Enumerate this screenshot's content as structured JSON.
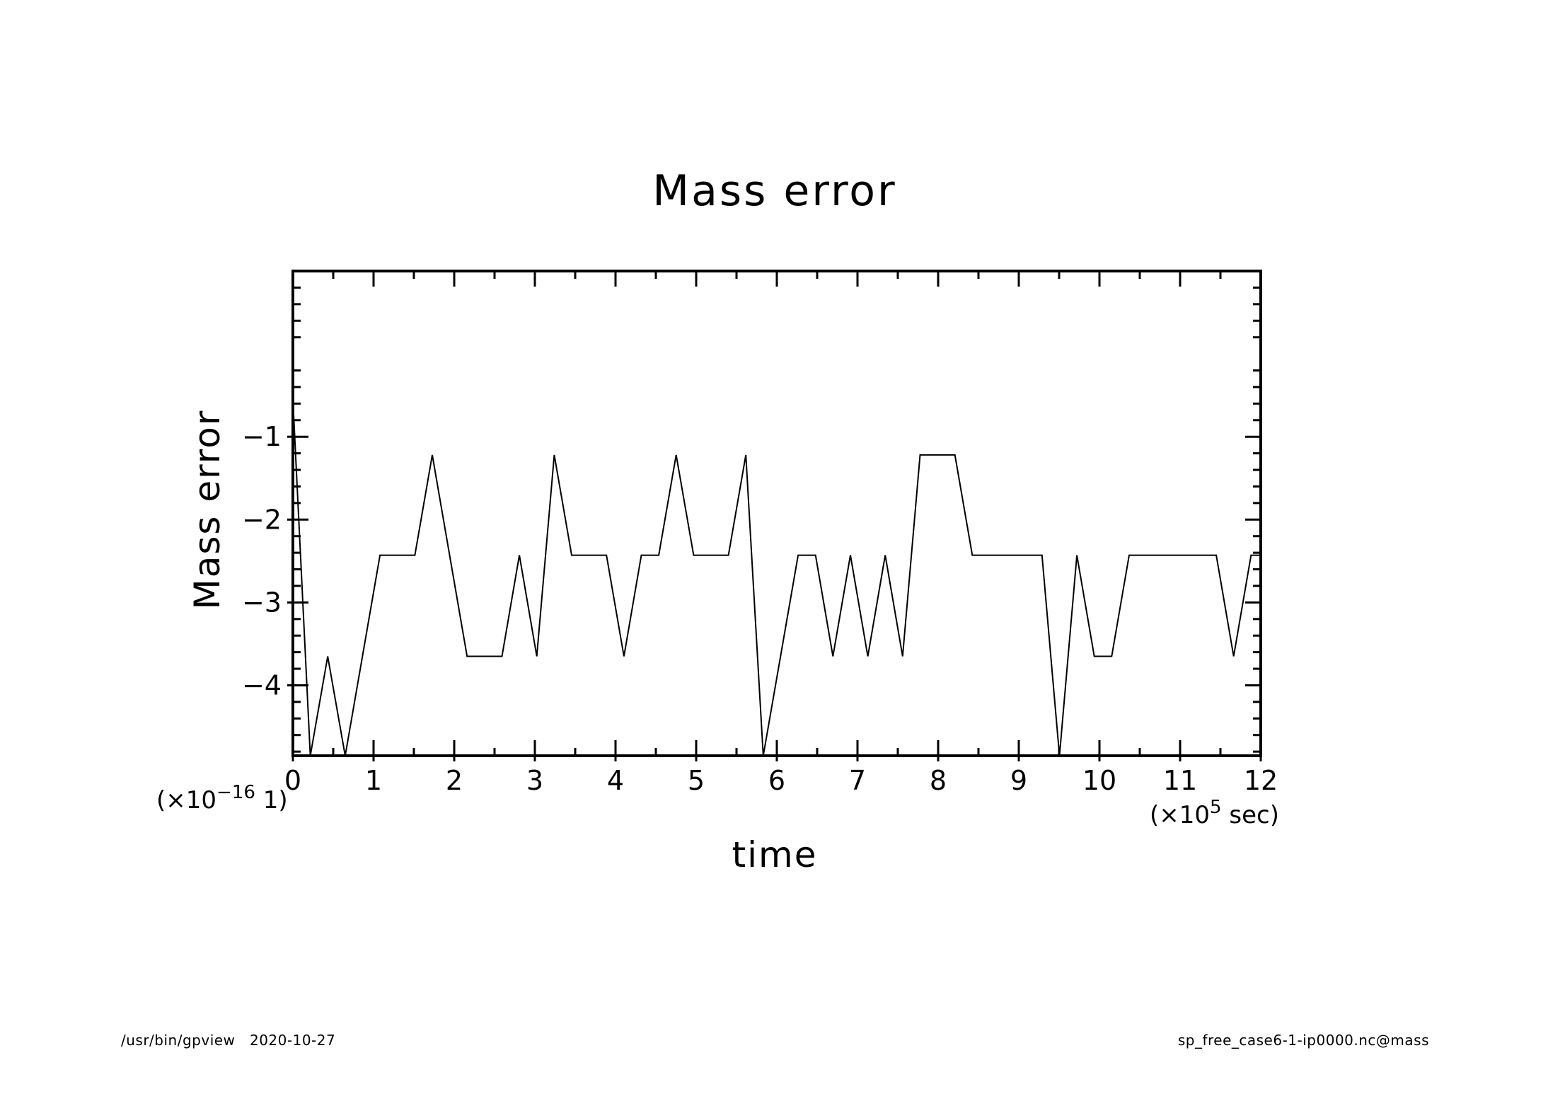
{
  "chart_data": {
    "type": "line",
    "title": "Mass error",
    "xlabel": "time",
    "ylabel": "Mass error",
    "x_scale_label": {
      "prefix": "(×10",
      "exp": "5",
      "suffix": " sec)"
    },
    "y_scale_label": {
      "prefix": "(×10",
      "exp": "−16",
      "suffix": " 1)"
    },
    "xlim": [
      0,
      12
    ],
    "ylim": [
      -4.85,
      1.0
    ],
    "x_ticks": [
      0,
      1,
      2,
      3,
      4,
      5,
      6,
      7,
      8,
      9,
      10,
      11,
      12
    ],
    "x_tick_labels": [
      "0",
      "1",
      "2",
      "3",
      "4",
      "5",
      "6",
      "7",
      "8",
      "9",
      "10",
      "11",
      "12"
    ],
    "y_ticks": [
      -1,
      -2,
      -3,
      -4
    ],
    "y_tick_labels": [
      "−1",
      "−2",
      "−3",
      "−4"
    ],
    "grid": false,
    "series": [
      {
        "x": [
          0.0,
          0.216,
          0.432,
          0.648,
          1.08,
          1.512,
          1.728,
          2.16,
          2.592,
          2.808,
          3.024,
          3.24,
          3.456,
          3.888,
          4.104,
          4.32,
          4.536,
          4.752,
          4.968,
          5.4,
          5.616,
          5.832,
          6.264,
          6.48,
          6.696,
          6.912,
          7.128,
          7.344,
          7.56,
          7.776,
          8.208,
          8.424,
          9.288,
          9.504,
          9.72,
          9.936,
          10.152,
          10.368,
          11.448,
          11.664,
          11.88,
          12.0
        ],
        "y": [
          -0.55,
          -4.85,
          -3.65,
          -4.85,
          -2.43,
          -2.43,
          -1.22,
          -3.65,
          -3.65,
          -2.43,
          -3.65,
          -1.22,
          -2.43,
          -2.43,
          -3.65,
          -2.43,
          -2.43,
          -1.22,
          -2.43,
          -2.43,
          -1.22,
          -4.85,
          -2.43,
          -2.43,
          -3.65,
          -2.43,
          -3.65,
          -2.43,
          -3.65,
          -1.22,
          -1.22,
          -2.43,
          -2.43,
          -4.85,
          -2.43,
          -3.65,
          -3.65,
          -2.43,
          -2.43,
          -3.65,
          -2.43,
          -2.43
        ]
      }
    ]
  },
  "footer": {
    "left": "/usr/bin/gpview   2020-10-27",
    "right": "sp_free_case6-1-ip0000.nc@mass"
  }
}
